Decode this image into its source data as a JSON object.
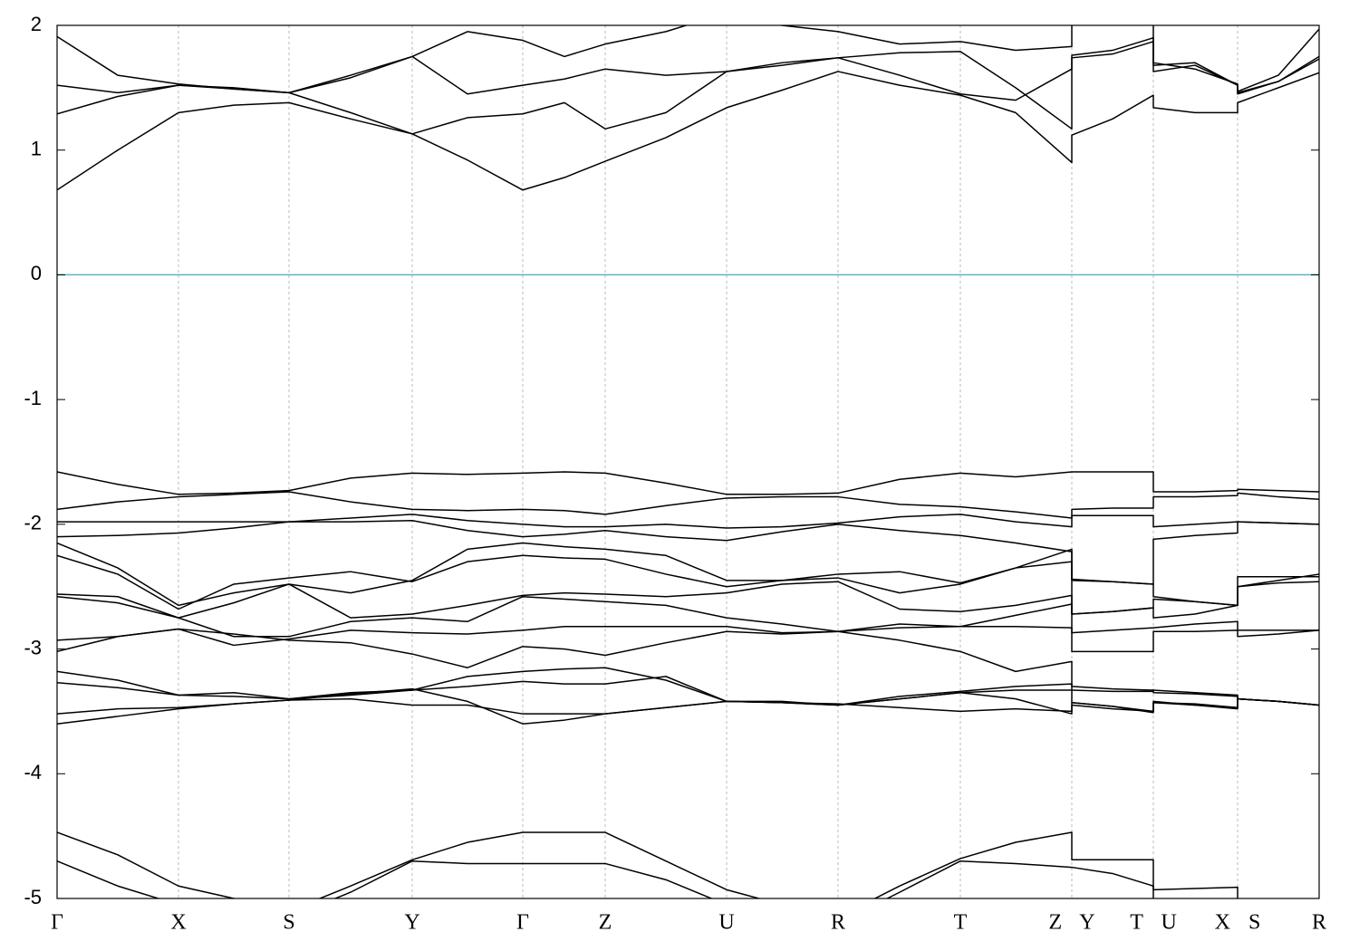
{
  "chart_data": {
    "type": "line",
    "x": [
      0,
      67,
      134,
      195,
      256,
      324,
      392,
      453,
      514,
      560,
      605,
      672,
      739,
      800,
      862,
      930,
      997,
      1058,
      1120,
      1120,
      1165,
      1210,
      1210,
      1256,
      1303,
      1303,
      1348,
      1393
    ],
    "xlim": [
      0,
      1393
    ],
    "xticks": [
      {
        "value": 0,
        "label": "Γ"
      },
      {
        "value": 134,
        "label": "X"
      },
      {
        "value": 256,
        "label": "S"
      },
      {
        "value": 392,
        "label": "Y"
      },
      {
        "value": 514,
        "label": "Γ"
      },
      {
        "value": 605,
        "label": "Z"
      },
      {
        "value": 739,
        "label": "U"
      },
      {
        "value": 862,
        "label": "R"
      },
      {
        "value": 997,
        "label": "T"
      },
      {
        "value": 1120,
        "label": "Z Y"
      },
      {
        "value": 1210,
        "label": "T U"
      },
      {
        "value": 1303,
        "label": "X S"
      },
      {
        "value": 1393,
        "label": "R"
      }
    ],
    "ylim": [
      -5,
      2
    ],
    "yticks": [
      -5,
      -4,
      -3,
      -2,
      -1,
      0,
      1,
      2
    ],
    "xgrid": true,
    "hlines": [
      {
        "value": 0,
        "color": "#5ab4c8"
      }
    ],
    "series": [
      {
        "color": "#000000",
        "values": [
          0.68,
          1.0,
          1.3,
          1.36,
          1.38,
          1.25,
          1.13,
          0.92,
          0.68,
          0.78,
          0.91,
          1.1,
          1.34,
          1.48,
          1.63,
          1.52,
          1.44,
          1.3,
          0.9,
          1.12,
          1.25,
          1.44,
          1.34,
          1.3,
          1.3,
          1.38,
          1.5,
          1.62
        ]
      },
      {
        "color": "#000000",
        "values": [
          1.29,
          1.43,
          1.52,
          1.49,
          1.46,
          1.3,
          1.13,
          1.26,
          1.29,
          1.38,
          1.17,
          1.3,
          1.63,
          1.7,
          1.74,
          1.78,
          1.79,
          1.5,
          1.17,
          1.74,
          1.77,
          1.87,
          1.63,
          1.68,
          1.52,
          1.45,
          1.55,
          1.73
        ]
      },
      {
        "color": "#000000",
        "values": [
          1.52,
          1.46,
          1.52,
          1.5,
          1.46,
          1.58,
          1.75,
          1.45,
          1.52,
          1.57,
          1.65,
          1.6,
          1.63,
          1.68,
          1.74,
          1.6,
          1.45,
          1.4,
          1.65,
          1.76,
          1.8,
          1.9,
          1.68,
          1.7,
          1.52,
          1.46,
          1.55,
          1.75
        ]
      },
      {
        "color": "#000000",
        "values": [
          1.91,
          1.6,
          1.53,
          1.49,
          1.46,
          1.6,
          1.75,
          1.95,
          1.88,
          1.75,
          1.85,
          1.95,
          2.1,
          2.0,
          1.95,
          1.85,
          1.87,
          1.8,
          1.83,
          2.05,
          2.1,
          2.0,
          1.7,
          1.65,
          1.53,
          1.47,
          1.6,
          1.97
        ]
      },
      {
        "color": "#000000",
        "values": [
          -1.58,
          -1.68,
          -1.76,
          -1.75,
          -1.73,
          -1.63,
          -1.59,
          -1.6,
          -1.59,
          -1.58,
          -1.59,
          -1.67,
          -1.76,
          -1.76,
          -1.75,
          -1.64,
          -1.59,
          -1.62,
          -1.58,
          -1.58,
          -1.58,
          -1.58,
          -1.74,
          -1.74,
          -1.73,
          -1.72,
          -1.73,
          -1.74
        ]
      },
      {
        "color": "#000000",
        "values": [
          -1.88,
          -1.82,
          -1.78,
          -1.76,
          -1.74,
          -1.82,
          -1.88,
          -1.89,
          -1.88,
          -1.89,
          -1.92,
          -1.85,
          -1.79,
          -1.78,
          -1.78,
          -1.84,
          -1.86,
          -1.9,
          -1.95,
          -1.88,
          -1.87,
          -1.87,
          -1.78,
          -1.78,
          -1.77,
          -1.75,
          -1.78,
          -1.8
        ]
      },
      {
        "color": "#000000",
        "values": [
          -1.98,
          -1.98,
          -1.98,
          -1.98,
          -1.98,
          -1.95,
          -1.92,
          -1.97,
          -2.0,
          -2.02,
          -2.02,
          -2.0,
          -2.03,
          -2.02,
          -1.99,
          -1.94,
          -1.92,
          -1.98,
          -2.02,
          -1.93,
          -1.93,
          -1.93,
          -2.02,
          -2.0,
          -1.98,
          -1.98,
          -1.99,
          -2.0
        ]
      },
      {
        "color": "#000000",
        "values": [
          -2.1,
          -2.09,
          -2.07,
          -2.03,
          -1.98,
          -1.98,
          -1.97,
          -2.05,
          -2.1,
          -2.08,
          -2.05,
          -2.1,
          -2.13,
          -2.06,
          -2.0,
          -2.05,
          -2.09,
          -2.15,
          -2.22,
          -2.44,
          -2.46,
          -2.48,
          -2.12,
          -2.09,
          -2.07,
          -1.98,
          -1.99,
          -2.0
        ]
      },
      {
        "color": "#000000",
        "values": [
          -2.15,
          -2.35,
          -2.65,
          -2.55,
          -2.48,
          -2.55,
          -2.45,
          -2.2,
          -2.15,
          -2.18,
          -2.2,
          -2.25,
          -2.45,
          -2.45,
          -2.4,
          -2.38,
          -2.47,
          -2.35,
          -2.3,
          -2.72,
          -2.7,
          -2.67,
          -2.6,
          -2.62,
          -2.65,
          -2.5,
          -2.45,
          -2.4
        ]
      },
      {
        "color": "#000000",
        "values": [
          -2.25,
          -2.4,
          -2.68,
          -2.48,
          -2.43,
          -2.38,
          -2.46,
          -2.3,
          -2.25,
          -2.27,
          -2.28,
          -2.4,
          -2.5,
          -2.45,
          -2.43,
          -2.55,
          -2.48,
          -2.35,
          -2.2,
          -2.45,
          -2.46,
          -2.48,
          -2.58,
          -2.62,
          -2.65,
          -2.42,
          -2.42,
          -2.42
        ]
      },
      {
        "color": "#000000",
        "values": [
          -2.56,
          -2.58,
          -2.75,
          -2.63,
          -2.48,
          -2.75,
          -2.72,
          -2.65,
          -2.57,
          -2.55,
          -2.56,
          -2.58,
          -2.55,
          -2.48,
          -2.46,
          -2.68,
          -2.7,
          -2.65,
          -2.57,
          -2.72,
          -2.7,
          -2.67,
          -2.75,
          -2.72,
          -2.65,
          -2.5,
          -2.47,
          -2.46
        ]
      },
      {
        "color": "#000000",
        "values": [
          -2.58,
          -2.63,
          -2.75,
          -2.9,
          -2.9,
          -2.78,
          -2.75,
          -2.78,
          -2.58,
          -2.6,
          -2.62,
          -2.65,
          -2.75,
          -2.8,
          -2.86,
          -2.8,
          -2.82,
          -2.73,
          -2.64,
          -2.87,
          -2.85,
          -2.83,
          -2.83,
          -2.8,
          -2.78,
          -2.85,
          -2.85,
          -2.85
        ]
      },
      {
        "color": "#000000",
        "values": [
          -2.93,
          -2.9,
          -2.84,
          -2.97,
          -2.92,
          -2.85,
          -2.87,
          -2.88,
          -2.85,
          -2.82,
          -2.82,
          -2.82,
          -2.82,
          -2.87,
          -2.86,
          -2.83,
          -2.82,
          -2.82,
          -2.83,
          -3.02,
          -3.02,
          -3.02,
          -2.86,
          -2.86,
          -2.85,
          -2.9,
          -2.88,
          -2.85
        ]
      },
      {
        "color": "#000000",
        "values": [
          -3.02,
          -2.9,
          -2.84,
          -2.88,
          -2.93,
          -2.95,
          -3.04,
          -3.15,
          -2.98,
          -3.0,
          -3.05,
          -2.95,
          -2.86,
          -2.88,
          -2.86,
          -2.93,
          -3.02,
          -3.18,
          -3.1,
          -3.3,
          -3.32,
          -3.33,
          -3.35,
          -3.36,
          -3.38,
          -3.4,
          -3.42,
          -3.45
        ]
      },
      {
        "color": "#000000",
        "values": [
          -3.18,
          -3.25,
          -3.37,
          -3.35,
          -3.4,
          -3.35,
          -3.33,
          -3.22,
          -3.18,
          -3.16,
          -3.15,
          -3.25,
          -3.42,
          -3.43,
          -3.45,
          -3.38,
          -3.34,
          -3.3,
          -3.28,
          -3.43,
          -3.46,
          -3.51,
          -3.42,
          -3.45,
          -3.47,
          -3.4,
          -3.42,
          -3.45
        ]
      },
      {
        "color": "#000000",
        "values": [
          -3.27,
          -3.31,
          -3.37,
          -3.38,
          -3.4,
          -3.37,
          -3.33,
          -3.3,
          -3.26,
          -3.28,
          -3.28,
          -3.22,
          -3.42,
          -3.42,
          -3.45,
          -3.4,
          -3.35,
          -3.33,
          -3.33,
          -3.33,
          -3.34,
          -3.34,
          -3.33,
          -3.35,
          -3.37,
          -3.4,
          -3.42,
          -3.45
        ]
      },
      {
        "color": "#000000",
        "values": [
          -3.52,
          -3.48,
          -3.47,
          -3.44,
          -3.41,
          -3.4,
          -3.45,
          -3.45,
          -3.52,
          -3.52,
          -3.52,
          -3.47,
          -3.42,
          -3.43,
          -3.44,
          -3.47,
          -3.5,
          -3.48,
          -3.5,
          -3.43,
          -3.46,
          -3.5,
          -3.43,
          -3.44,
          -3.47,
          -3.4,
          -3.42,
          -3.45
        ]
      },
      {
        "color": "#000000",
        "values": [
          -3.6,
          -3.54,
          -3.48,
          -3.44,
          -3.41,
          -3.36,
          -3.32,
          -3.42,
          -3.6,
          -3.57,
          -3.52,
          -3.47,
          -3.42,
          -3.43,
          -3.45,
          -3.4,
          -3.35,
          -3.4,
          -3.52,
          -3.45,
          -3.48,
          -3.5,
          -3.43,
          -3.45,
          -3.48,
          -3.4,
          -3.42,
          -3.45
        ]
      },
      {
        "color": "#000000",
        "values": [
          -4.47,
          -4.65,
          -4.9,
          -5.0,
          -5.1,
          -4.9,
          -4.69,
          -4.55,
          -4.47,
          -4.47,
          -4.47,
          -4.7,
          -4.93,
          -5.05,
          -5.15,
          -4.9,
          -4.68,
          -4.55,
          -4.47,
          -4.69,
          -4.69,
          -4.69,
          -4.93,
          -4.92,
          -4.91,
          -5.1,
          -5.1,
          -5.1
        ]
      },
      {
        "color": "#000000",
        "values": [
          -4.7,
          -4.9,
          -5.05,
          -5.1,
          -5.15,
          -4.95,
          -4.7,
          -4.72,
          -4.72,
          -4.72,
          -4.72,
          -4.85,
          -5.05,
          -5.1,
          -5.2,
          -4.95,
          -4.7,
          -4.72,
          -4.75,
          -4.75,
          -4.8,
          -4.9,
          -5.1,
          -5.1,
          -5.1,
          -5.15,
          -5.15,
          -5.15
        ]
      }
    ]
  }
}
